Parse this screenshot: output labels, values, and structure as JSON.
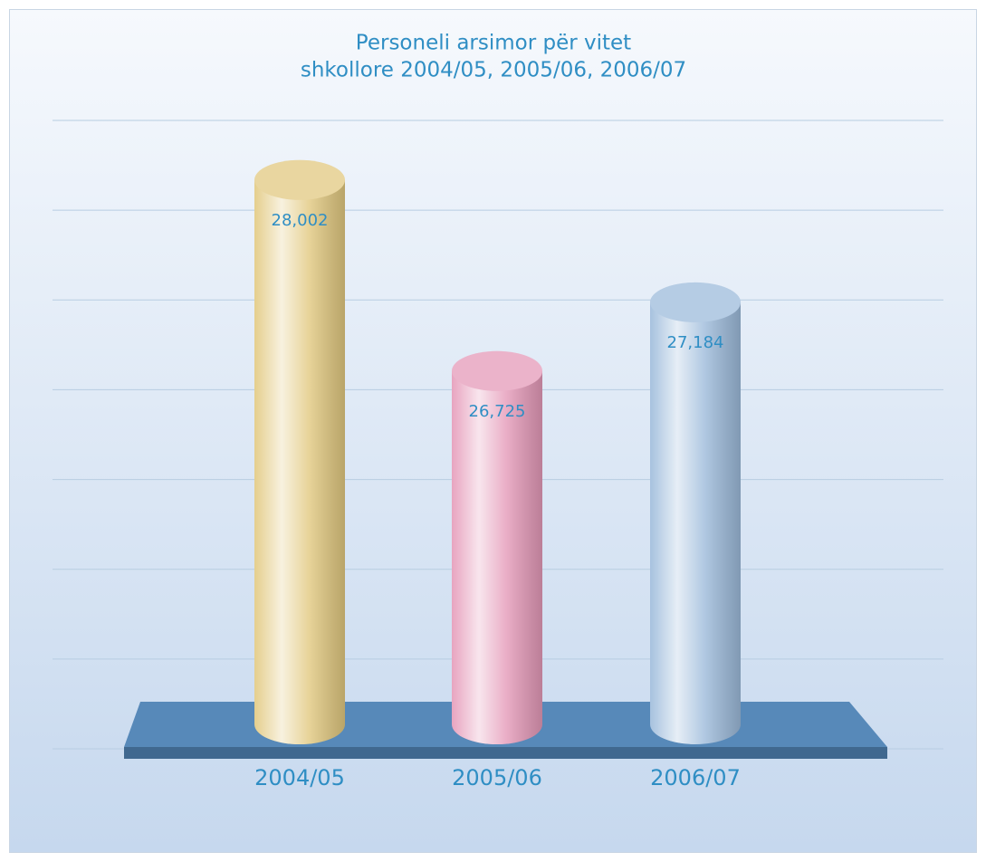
{
  "chart_data": {
    "type": "bar",
    "title": [
      "Personeli arsimor për vitet",
      "shkollore 2004/05, 2005/06, 2006/07"
    ],
    "categories": [
      "2004/05",
      "2005/06",
      "2006/07"
    ],
    "values": [
      28002,
      26725,
      27184
    ],
    "value_labels": [
      "28,002",
      "26,725",
      "27,184"
    ],
    "colors": [
      "#e2c980",
      "#e59ab9",
      "#9dbbdb"
    ],
    "ylim": [
      24200,
      28400
    ],
    "yticks": [
      24200,
      24800,
      25400,
      26000,
      26600,
      27200,
      27800,
      28400
    ],
    "grid": true
  }
}
